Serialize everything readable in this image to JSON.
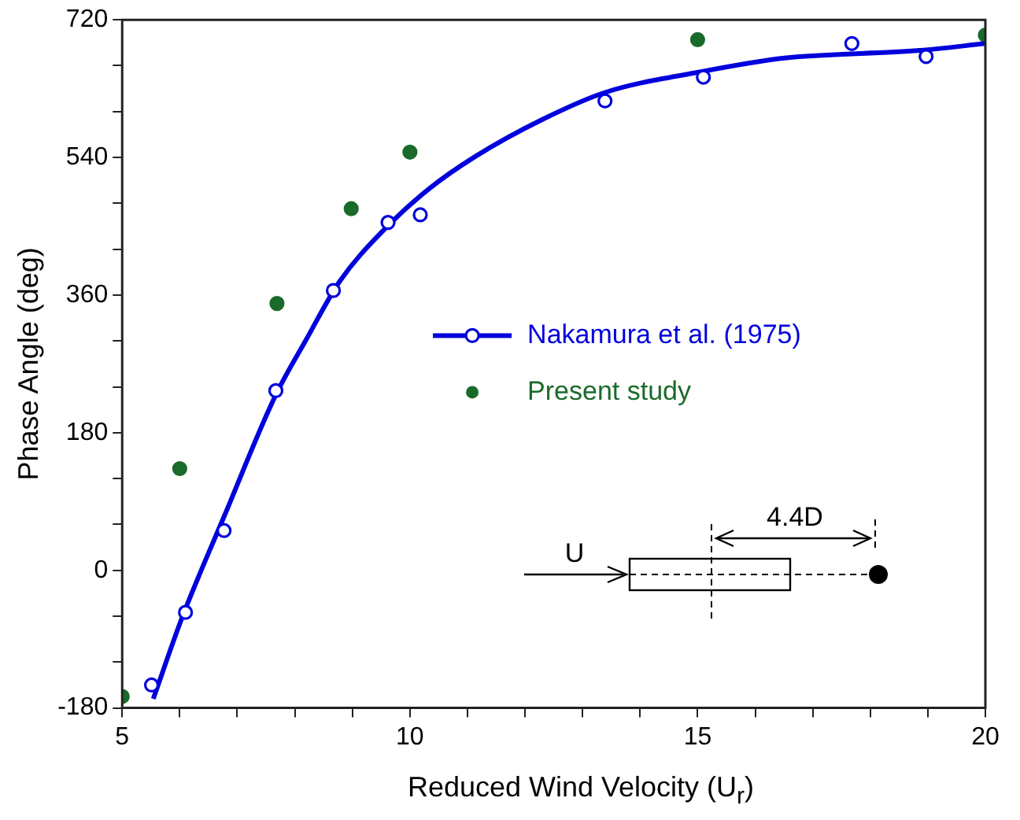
{
  "chart_data": {
    "type": "scatter",
    "xlabel": "Reduced Wind Velocity (U$_{r}$)",
    "ylabel": "Phase Angle (deg)",
    "xlim": [
      5,
      20
    ],
    "ylim": [
      -180,
      720
    ],
    "xticks": [
      5,
      {
        "value": 6,
        "label": null
      },
      {
        "value": 7,
        "label": null
      },
      {
        "value": 8,
        "label": null
      },
      {
        "value": 9,
        "label": null
      },
      10,
      {
        "value": 11,
        "label": null
      },
      {
        "value": 12,
        "label": null
      },
      {
        "value": 13,
        "label": null
      },
      {
        "value": 14,
        "label": null
      },
      15,
      {
        "value": 16,
        "label": null
      },
      {
        "value": 17,
        "label": null
      },
      {
        "value": 18,
        "label": null
      },
      {
        "value": 19,
        "label": null
      },
      20
    ],
    "yticks": [
      -180,
      {
        "value": -120,
        "label": null
      },
      {
        "value": -60,
        "label": null
      },
      0,
      {
        "value": 60,
        "label": null
      },
      {
        "value": 120,
        "label": null
      },
      180,
      {
        "value": 240,
        "label": null
      },
      {
        "value": 300,
        "label": null
      },
      360,
      {
        "value": 420,
        "label": null
      },
      {
        "value": 480,
        "label": null
      },
      540,
      {
        "value": 600,
        "label": null
      },
      {
        "value": 660,
        "label": null
      },
      720
    ],
    "grid": false,
    "legend": "right",
    "marker": "circle",
    "annotations": [
      "U",
      "4.4D"
    ],
    "series": [
      {
        "name": "Nakamura et al. (1975)",
        "type": "scatter",
        "color": "#0000dd",
        "x": [
          5.51,
          6.1,
          6.77,
          7.67,
          8.67,
          9.62,
          10.18,
          13.39,
          15.1,
          17.68,
          18.97
        ],
        "values": [
          -150,
          -55,
          52,
          235,
          366,
          455,
          465,
          614,
          645,
          689,
          672
        ]
      },
      {
        "type": "line",
        "color": "#0000dd",
        "marker": "none",
        "x": [
          5.54,
          6.05,
          6.78,
          7.66,
          8.2,
          8.78,
          9.57,
          10.35,
          11.13,
          12.31,
          13.39,
          15.05,
          16.51,
          18.86,
          20
        ],
        "values": [
          -168,
          -60,
          72,
          228,
          302,
          378,
          447,
          500,
          541,
          590,
          625,
          652,
          670,
          680,
          689
        ]
      },
      {
        "name": "Present study",
        "type": "scatter",
        "color": "#1a6b2a",
        "x": [
          5,
          6,
          7.69,
          8.98,
          10,
          15,
          20
        ],
        "values": [
          -165,
          133,
          349,
          473,
          547,
          694,
          700
        ]
      }
    ]
  }
}
